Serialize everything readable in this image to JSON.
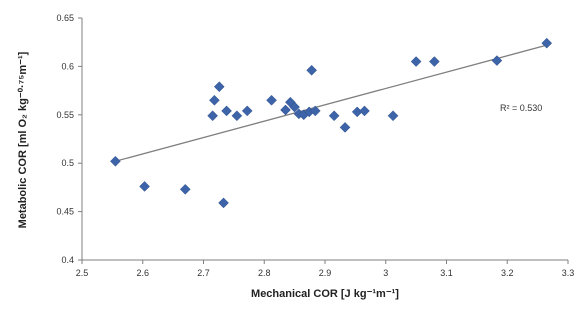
{
  "chart_data": {
    "type": "scatter",
    "xlabel": "Mechanical COR [J kg⁻¹m⁻¹]",
    "ylabel": "Metabolic COR [ml O₂ kg⁻⁰·⁷⁵m⁻¹]",
    "xlim": [
      2.5,
      3.3
    ],
    "ylim": [
      0.4,
      0.65
    ],
    "xticks": [
      "2.5",
      "2.6",
      "2.7",
      "2.8",
      "2.9",
      "3",
      "3.1",
      "3.2",
      "3.3"
    ],
    "yticks": [
      "0.4",
      "0.45",
      "0.5",
      "0.55",
      "0.6",
      "0.65"
    ],
    "grid": false,
    "marker_color": "#3d64a8",
    "trendline_color": "#7f7f7f",
    "annotation": "R² = 0.530",
    "trendline": {
      "x": [
        2.555,
        3.265
      ],
      "y": [
        0.502,
        0.622
      ]
    },
    "points": [
      {
        "x": 2.555,
        "y": 0.502
      },
      {
        "x": 2.603,
        "y": 0.476
      },
      {
        "x": 2.67,
        "y": 0.473
      },
      {
        "x": 2.715,
        "y": 0.549
      },
      {
        "x": 2.718,
        "y": 0.565
      },
      {
        "x": 2.726,
        "y": 0.579
      },
      {
        "x": 2.733,
        "y": 0.459
      },
      {
        "x": 2.738,
        "y": 0.554
      },
      {
        "x": 2.755,
        "y": 0.549
      },
      {
        "x": 2.772,
        "y": 0.554
      },
      {
        "x": 2.812,
        "y": 0.565
      },
      {
        "x": 2.835,
        "y": 0.555
      },
      {
        "x": 2.843,
        "y": 0.563
      },
      {
        "x": 2.85,
        "y": 0.558
      },
      {
        "x": 2.857,
        "y": 0.551
      },
      {
        "x": 2.865,
        "y": 0.55
      },
      {
        "x": 2.874,
        "y": 0.553
      },
      {
        "x": 2.878,
        "y": 0.596
      },
      {
        "x": 2.884,
        "y": 0.554
      },
      {
        "x": 2.915,
        "y": 0.549
      },
      {
        "x": 2.933,
        "y": 0.537
      },
      {
        "x": 2.953,
        "y": 0.553
      },
      {
        "x": 2.965,
        "y": 0.554
      },
      {
        "x": 3.012,
        "y": 0.549
      },
      {
        "x": 3.05,
        "y": 0.605
      },
      {
        "x": 3.08,
        "y": 0.605
      },
      {
        "x": 3.183,
        "y": 0.606
      },
      {
        "x": 3.265,
        "y": 0.624
      }
    ]
  }
}
